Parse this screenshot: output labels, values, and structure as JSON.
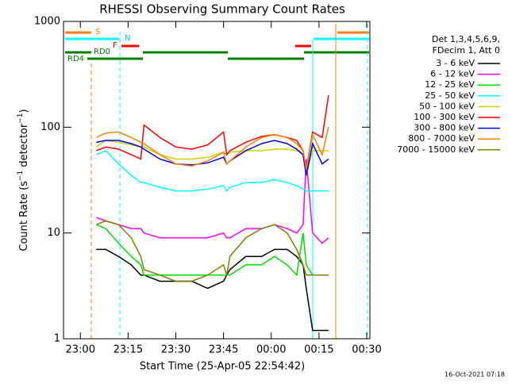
{
  "chart_data": {
    "type": "line",
    "title": "RHESSI Observing Summary Count Rates",
    "xlabel": "Start Time (25-Apr-05 22:54:42)",
    "ylabel": [
      "Count Rate (s",
      "−1",
      " detector",
      "−1",
      ")"
    ],
    "log_y": true,
    "xlim": [
      1374.7,
      1471
    ],
    "ylim": [
      1,
      1000
    ],
    "yticks": [
      1,
      10,
      100,
      1000
    ],
    "xticks": [
      {
        "value": 1380,
        "label": "23:00"
      },
      {
        "value": 1395,
        "label": "23:15"
      },
      {
        "value": 1410,
        "label": "23:30"
      },
      {
        "value": 1425,
        "label": "23:45"
      },
      {
        "value": 1440,
        "label": "00:00"
      },
      {
        "value": 1455,
        "label": "00:15"
      },
      {
        "value": 1470,
        "label": "00:30"
      }
    ],
    "x": [
      1385,
      1388,
      1392,
      1396,
      1399,
      1400,
      1405,
      1410,
      1415,
      1420,
      1425,
      1426,
      1427,
      1432,
      1437,
      1441,
      1445,
      1448,
      1450,
      1451,
      1453,
      1456,
      1458
    ],
    "legend_header": [
      "Det 1,3,4,5,6,9,",
      "FDecim 1, Att 0"
    ],
    "flags": [
      "S",
      "N",
      "F",
      "RD0",
      "RD4"
    ],
    "footer": "16-Oct-2021 07:18",
    "series": [
      {
        "name": "3 - 6 keV",
        "color": "#000000",
        "values": [
          7,
          7,
          6,
          5,
          4,
          4,
          3.5,
          3.5,
          3.5,
          3,
          3.5,
          4,
          4.5,
          6,
          6,
          7,
          7,
          6,
          5,
          3,
          1.2,
          1.2,
          1.2
        ]
      },
      {
        "name": "6 - 12 keV",
        "color": "#ff00ff",
        "values": [
          14,
          13,
          12,
          11,
          11,
          10,
          9,
          9,
          9,
          9,
          10,
          9,
          9,
          11,
          11,
          12,
          11,
          10,
          12,
          50,
          10,
          8,
          9
        ]
      },
      {
        "name": "12 - 25 keV",
        "color": "#00e000",
        "values": [
          12,
          11,
          8,
          6,
          5,
          4,
          4,
          4,
          4,
          4,
          4,
          4,
          4,
          5,
          5,
          6,
          5,
          4,
          10,
          5,
          4,
          4,
          4
        ]
      },
      {
        "name": "25 - 50 keV",
        "color": "#00ffff",
        "values": [
          55,
          60,
          45,
          35,
          30,
          30,
          27,
          25,
          25,
          26,
          28,
          25,
          27,
          30,
          30,
          32,
          30,
          28,
          26,
          25,
          25,
          25,
          25
        ]
      },
      {
        "name": "50 - 100 keV",
        "color": "#d0d000",
        "values": [
          65,
          75,
          72,
          68,
          65,
          65,
          55,
          50,
          50,
          52,
          58,
          55,
          58,
          60,
          60,
          62,
          62,
          60,
          55,
          35,
          60,
          60,
          60
        ]
      },
      {
        "name": "100 - 300 keV",
        "color": "#ff0000",
        "values": [
          60,
          65,
          62,
          55,
          50,
          105,
          80,
          65,
          62,
          68,
          90,
          55,
          60,
          72,
          82,
          85,
          80,
          75,
          60,
          40,
          90,
          80,
          200
        ]
      },
      {
        "name": "300 - 800 keV",
        "color": "#0000ff",
        "values": [
          72,
          75,
          75,
          70,
          65,
          62,
          50,
          45,
          44,
          46,
          52,
          45,
          48,
          60,
          70,
          75,
          70,
          62,
          55,
          35,
          70,
          45,
          50
        ]
      },
      {
        "name": "800 - 7000 keV",
        "color": "#ff8000",
        "values": [
          80,
          88,
          90,
          80,
          72,
          70,
          55,
          45,
          43,
          48,
          58,
          45,
          48,
          65,
          80,
          85,
          80,
          70,
          60,
          40,
          85,
          55,
          100
        ]
      },
      {
        "name": "7000 - 15000 keV",
        "color": "#808000",
        "values": [
          12,
          13,
          12,
          9,
          6,
          4.5,
          4,
          3.5,
          3.5,
          4,
          5,
          4,
          6,
          9,
          11,
          12,
          10,
          7,
          5,
          4,
          4,
          4,
          4
        ]
      }
    ]
  }
}
